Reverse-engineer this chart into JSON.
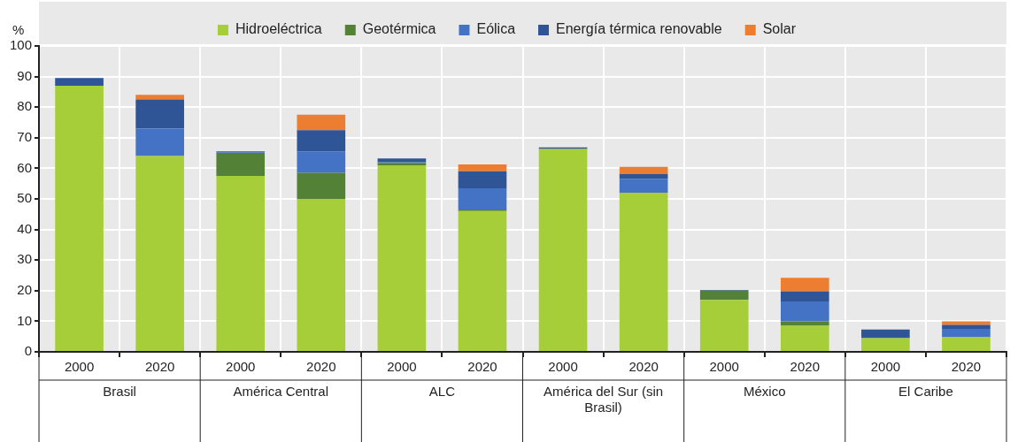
{
  "chart_data": {
    "type": "bar",
    "stacked": true,
    "ylabel": "%",
    "categories": [
      "2000",
      "2020",
      "2000",
      "2020",
      "2000",
      "2020",
      "2000",
      "2020",
      "2000",
      "2020",
      "2000",
      "2020"
    ],
    "annotations": [
      "Brasil",
      "América Central",
      "ALC",
      "América del Sur (sin Brasil)",
      "México",
      "El Caribe"
    ],
    "series": [
      {
        "name": "Hidroeléctrica",
        "color": "#a6ce39",
        "values": [
          87,
          64,
          57.5,
          50,
          61,
          46,
          66.3,
          52,
          17,
          8.5,
          4.5,
          4.8
        ]
      },
      {
        "name": "Geotérmica",
        "color": "#538135",
        "values": [
          0,
          0,
          7.5,
          8.5,
          0.8,
          0.5,
          0,
          0,
          3,
          1.5,
          0,
          0
        ]
      },
      {
        "name": "Eólica",
        "color": "#4472c4",
        "values": [
          0,
          9,
          0.2,
          7,
          0.2,
          7,
          0,
          4.5,
          0,
          6.5,
          0,
          2.7
        ]
      },
      {
        "name": "Energía térmica renovable",
        "color": "#2f5597",
        "values": [
          2.5,
          9.5,
          0.3,
          7,
          1.2,
          5.5,
          0.5,
          1.7,
          0.2,
          3.3,
          2.8,
          1.3
        ]
      },
      {
        "name": "Solar",
        "color": "#ed7d31",
        "values": [
          0,
          1.5,
          0,
          5,
          0,
          2.3,
          0,
          2.3,
          0,
          4.4,
          0,
          1.2
        ]
      }
    ],
    "ylim": [
      0,
      100
    ],
    "yticks": [
      0,
      10,
      20,
      30,
      40,
      50,
      60,
      70,
      80,
      90,
      100
    ],
    "grid": true,
    "legend": "top"
  }
}
